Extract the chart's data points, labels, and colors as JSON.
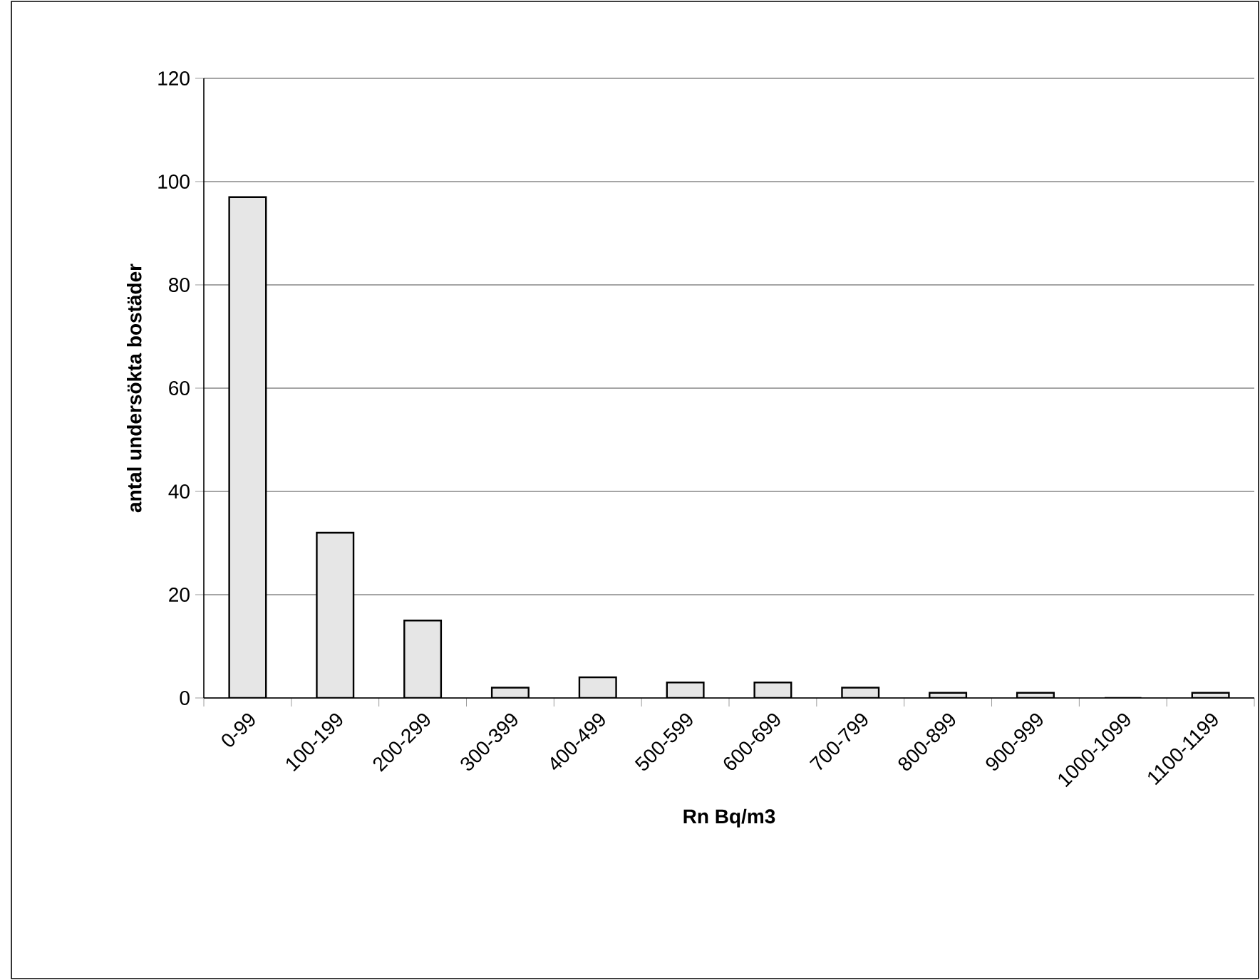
{
  "chart_data": {
    "type": "bar",
    "xlabel": "Rn Bq/m3",
    "ylabel": "antal undersökta bostäder",
    "categories": [
      "0-99",
      "100-199",
      "200-299",
      "300-399",
      "400-499",
      "500-599",
      "600-699",
      "700-799",
      "800-899",
      "900-999",
      "1000-1099",
      "1100-1199"
    ],
    "values": [
      97,
      32,
      15,
      2,
      4,
      3,
      3,
      2,
      1,
      1,
      0,
      1
    ],
    "color": "#e6e6e6",
    "ylim": [
      0,
      120
    ],
    "yticks": [
      0,
      20,
      40,
      60,
      80,
      100,
      120
    ],
    "grid": "y"
  }
}
